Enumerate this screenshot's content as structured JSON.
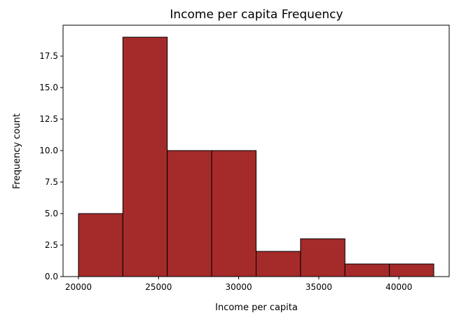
{
  "chart_data": {
    "type": "bar",
    "title": "Income per capita Frequency",
    "xlabel": "Income per capita",
    "ylabel": "Frequency count",
    "bin_edges": [
      20000,
      22772,
      25544,
      28316,
      31088,
      33860,
      36632,
      39404,
      42176
    ],
    "values": [
      5,
      19,
      10,
      10,
      2,
      3,
      1,
      1
    ],
    "xlim": [
      19040,
      43136
    ],
    "ylim": [
      0,
      19.95
    ],
    "xticks": [
      20000,
      25000,
      30000,
      35000,
      40000
    ],
    "xtick_labels": [
      "20000",
      "25000",
      "30000",
      "35000",
      "40000"
    ],
    "yticks": [
      0,
      2.5,
      5,
      7.5,
      10,
      12.5,
      15,
      17.5
    ],
    "ytick_labels": [
      "0.0",
      "2.5",
      "5.0",
      "7.5",
      "10.0",
      "12.5",
      "15.0",
      "17.5"
    ],
    "bar_color": "#a52a2a",
    "edge_color": "#000000",
    "grid": false,
    "legend": "none"
  }
}
